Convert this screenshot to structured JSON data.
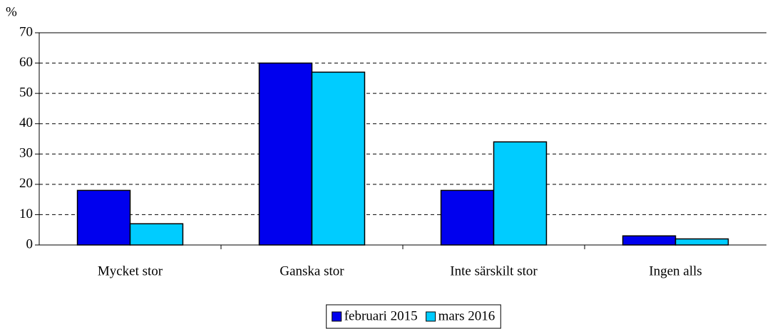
{
  "chart_data": {
    "type": "bar",
    "y_label": "%",
    "categories": [
      "Mycket stor",
      "Ganska stor",
      "Inte särskilt stor",
      "Ingen alls"
    ],
    "series": [
      {
        "name": "februari 2015",
        "color": "#0000ee",
        "values": [
          18,
          60,
          18,
          3
        ]
      },
      {
        "name": "mars 2016",
        "color": "#00ccff",
        "values": [
          7,
          57,
          34,
          2
        ]
      }
    ],
    "ylim": [
      0,
      70
    ],
    "yticks": [
      0,
      10,
      20,
      30,
      40,
      50,
      60,
      70
    ],
    "grid": true,
    "legend": "bottom"
  }
}
